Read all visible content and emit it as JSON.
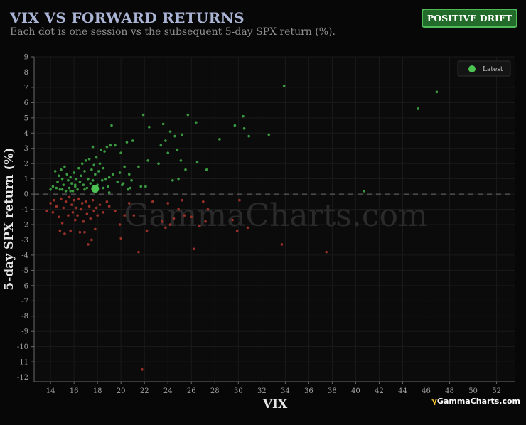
{
  "header": {
    "title": "VIX VS FORWARD RETURNS",
    "subtitle": "Each dot is one session vs the subsequent 5-day SPX return (%).",
    "badge": "POSITIVE DRIFT"
  },
  "brand": {
    "mark": "γ",
    "name": "GammaCharts.com"
  },
  "chart_data": {
    "type": "scatter",
    "watermark": "GammaCharts.com",
    "xlabel": "VIX",
    "ylabel": "5-day SPX return (%)",
    "xlim": [
      12.6,
      53.6
    ],
    "ylim": [
      -12.3,
      9
    ],
    "xticks": [
      14,
      16,
      18,
      20,
      22,
      24,
      26,
      28,
      30,
      32,
      34,
      36,
      38,
      40,
      42,
      44,
      46,
      48,
      50,
      52
    ],
    "yticks": [
      9,
      8,
      7,
      6,
      5,
      4,
      3,
      2,
      1,
      0,
      -1,
      -2,
      -3,
      -4,
      -5,
      -6,
      -7,
      -8,
      -9,
      -10,
      -11,
      -12
    ],
    "grid": true,
    "zero_line": true,
    "legend": {
      "entries": [
        "Latest"
      ],
      "placement": "top-right"
    },
    "colors": {
      "positive": "#3a9a3f",
      "negative": "#9a3128",
      "latest": "#4cc253"
    },
    "latest": {
      "x": 17.8,
      "y": 0.35
    },
    "points": [
      [
        14.0,
        0.3
      ],
      [
        14.2,
        0.5
      ],
      [
        14.4,
        1.5
      ],
      [
        14.6,
        0.8
      ],
      [
        14.7,
        1.2
      ],
      [
        14.8,
        0.3
      ],
      [
        14.9,
        1.6
      ],
      [
        15.0,
        1.0
      ],
      [
        15.1,
        0.6
      ],
      [
        15.2,
        1.8
      ],
      [
        15.3,
        0.2
      ],
      [
        15.4,
        1.3
      ],
      [
        15.5,
        0.9
      ],
      [
        15.6,
        0.4
      ],
      [
        15.7,
        1.1
      ],
      [
        15.8,
        0.7
      ],
      [
        15.9,
        0.2
      ],
      [
        16.0,
        1.4
      ],
      [
        16.1,
        0.5
      ],
      [
        16.2,
        1.0
      ],
      [
        16.3,
        0.3
      ],
      [
        16.4,
        1.7
      ],
      [
        16.5,
        0.8
      ],
      [
        16.6,
        1.2
      ],
      [
        16.7,
        2.0
      ],
      [
        16.8,
        0.6
      ],
      [
        16.9,
        1.5
      ],
      [
        17.0,
        2.2
      ],
      [
        17.1,
        0.4
      ],
      [
        17.2,
        1.0
      ],
      [
        17.3,
        2.3
      ],
      [
        17.4,
        0.7
      ],
      [
        17.5,
        1.6
      ],
      [
        17.6,
        3.1
      ],
      [
        17.7,
        1.9
      ],
      [
        17.8,
        1.3
      ],
      [
        17.9,
        2.4
      ],
      [
        18.0,
        0.6
      ],
      [
        18.1,
        1.5
      ],
      [
        18.2,
        2.0
      ],
      [
        18.3,
        2.9
      ],
      [
        18.4,
        0.9
      ],
      [
        18.5,
        1.7
      ],
      [
        18.6,
        2.8
      ],
      [
        18.7,
        1.0
      ],
      [
        18.8,
        3.1
      ],
      [
        18.9,
        0.5
      ],
      [
        19.0,
        1.1
      ],
      [
        19.1,
        3.2
      ],
      [
        19.2,
        4.5
      ],
      [
        19.3,
        1.3
      ],
      [
        19.5,
        3.2
      ],
      [
        19.7,
        0.8
      ],
      [
        19.9,
        1.4
      ],
      [
        20.0,
        2.7
      ],
      [
        20.2,
        0.7
      ],
      [
        20.3,
        1.8
      ],
      [
        20.5,
        3.4
      ],
      [
        20.6,
        0.3
      ],
      [
        20.7,
        1.3
      ],
      [
        20.9,
        0.9
      ],
      [
        21.0,
        3.5
      ],
      [
        21.5,
        1.8
      ],
      [
        21.7,
        0.5
      ],
      [
        21.9,
        5.2
      ],
      [
        22.3,
        2.2
      ],
      [
        22.4,
        4.4
      ],
      [
        23.4,
        3.2
      ],
      [
        23.6,
        4.6
      ],
      [
        23.8,
        3.5
      ],
      [
        24.0,
        2.7
      ],
      [
        24.2,
        4.1
      ],
      [
        24.6,
        3.8
      ],
      [
        24.8,
        2.9
      ],
      [
        24.9,
        1.0
      ],
      [
        25.1,
        2.2
      ],
      [
        25.2,
        3.9
      ],
      [
        25.7,
        5.2
      ],
      [
        26.4,
        4.7
      ],
      [
        26.5,
        2.1
      ],
      [
        27.3,
        1.6
      ],
      [
        28.4,
        3.6
      ],
      [
        29.7,
        4.5
      ],
      [
        30.4,
        5.1
      ],
      [
        30.5,
        4.3
      ],
      [
        30.9,
        3.8
      ],
      [
        32.6,
        3.9
      ],
      [
        33.9,
        7.1
      ],
      [
        40.7,
        0.2
      ],
      [
        45.3,
        5.6
      ],
      [
        46.9,
        6.7
      ],
      [
        14.5,
        0.4
      ],
      [
        15.0,
        0.3
      ],
      [
        15.7,
        0.2
      ],
      [
        16.1,
        0.6
      ],
      [
        16.9,
        0.3
      ],
      [
        17.6,
        0.9
      ],
      [
        18.5,
        0.4
      ],
      [
        19.0,
        0.1
      ],
      [
        20.1,
        0.6
      ],
      [
        20.8,
        0.4
      ],
      [
        22.1,
        0.5
      ],
      [
        24.4,
        0.9
      ],
      [
        23.2,
        2.0
      ],
      [
        25.5,
        1.6
      ],
      [
        13.7,
        -1.1
      ],
      [
        14.0,
        -0.6
      ],
      [
        14.2,
        -1.2
      ],
      [
        14.3,
        -0.4
      ],
      [
        14.5,
        -0.8
      ],
      [
        14.7,
        -1.5
      ],
      [
        14.8,
        -2.4
      ],
      [
        14.9,
        -0.3
      ],
      [
        15.0,
        -1.9
      ],
      [
        15.1,
        -0.9
      ],
      [
        15.2,
        -2.6
      ],
      [
        15.3,
        -0.5
      ],
      [
        15.5,
        -1.4
      ],
      [
        15.6,
        -0.2
      ],
      [
        15.7,
        -2.4
      ],
      [
        15.8,
        -0.7
      ],
      [
        15.9,
        -1.2
      ],
      [
        16.0,
        -0.4
      ],
      [
        16.1,
        -1.7
      ],
      [
        16.2,
        -0.9
      ],
      [
        16.3,
        -1.4
      ],
      [
        16.4,
        -0.3
      ],
      [
        16.5,
        -2.5
      ],
      [
        16.6,
        -1.0
      ],
      [
        16.7,
        -0.6
      ],
      [
        16.8,
        -1.8
      ],
      [
        16.9,
        -2.5
      ],
      [
        17.0,
        -0.5
      ],
      [
        17.1,
        -1.3
      ],
      [
        17.2,
        -3.3
      ],
      [
        17.3,
        -0.8
      ],
      [
        17.4,
        -1.6
      ],
      [
        17.5,
        -3.0
      ],
      [
        17.6,
        -0.4
      ],
      [
        17.7,
        -1.1
      ],
      [
        17.8,
        -2.3
      ],
      [
        17.9,
        -0.9
      ],
      [
        18.0,
        -1.4
      ],
      [
        18.2,
        -0.7
      ],
      [
        18.5,
        -1.2
      ],
      [
        18.8,
        -0.5
      ],
      [
        19.0,
        -0.8
      ],
      [
        19.5,
        -1.1
      ],
      [
        19.9,
        -2.0
      ],
      [
        20.0,
        -2.9
      ],
      [
        20.3,
        -1.4
      ],
      [
        20.7,
        -0.6
      ],
      [
        21.1,
        -1.4
      ],
      [
        21.5,
        -3.8
      ],
      [
        21.8,
        -11.5
      ],
      [
        22.2,
        -2.4
      ],
      [
        22.7,
        -0.5
      ],
      [
        23.5,
        -1.8
      ],
      [
        23.8,
        -2.2
      ],
      [
        24.0,
        -0.6
      ],
      [
        24.2,
        -2.0
      ],
      [
        24.5,
        -1.6
      ],
      [
        24.9,
        -1.0
      ],
      [
        25.2,
        -0.4
      ],
      [
        25.4,
        -1.4
      ],
      [
        26.0,
        -1.5
      ],
      [
        26.2,
        -3.6
      ],
      [
        26.7,
        -2.1
      ],
      [
        27.0,
        -0.5
      ],
      [
        27.2,
        -1.8
      ],
      [
        27.4,
        -1.0
      ],
      [
        29.5,
        -1.7
      ],
      [
        29.9,
        -2.4
      ],
      [
        30.1,
        -0.4
      ],
      [
        30.8,
        -2.2
      ],
      [
        33.7,
        -3.3
      ],
      [
        37.5,
        -3.8
      ]
    ]
  }
}
